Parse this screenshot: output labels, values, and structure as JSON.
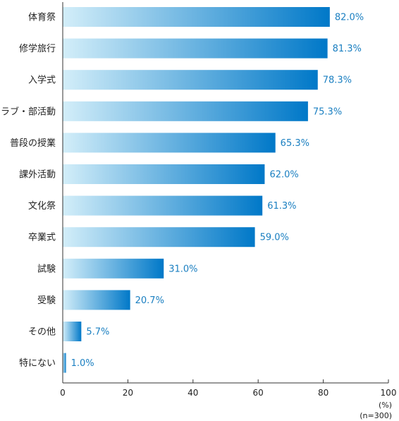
{
  "chart_data": {
    "type": "bar",
    "orientation": "horizontal",
    "categories": [
      "体育祭",
      "修学旅行",
      "入学式",
      "クラブ・部活動",
      "普段の授業",
      "課外活動",
      "文化祭",
      "卒業式",
      "試験",
      "受験",
      "その他",
      "特にない"
    ],
    "values": [
      82.0,
      81.3,
      78.3,
      75.3,
      65.3,
      62.0,
      61.3,
      59.0,
      31.0,
      20.7,
      5.7,
      1.0
    ],
    "value_labels": [
      "82.0%",
      "81.3%",
      "78.3%",
      "75.3%",
      "65.3%",
      "62.0%",
      "61.3%",
      "59.0%",
      "31.0%",
      "20.7%",
      "5.7%",
      "1.0%"
    ],
    "xlim": [
      0,
      100
    ],
    "xticks": [
      "0",
      "20",
      "40",
      "60",
      "80",
      "100"
    ],
    "unit_label": "(%)",
    "sample_label": "(n=300)",
    "grid": false,
    "legend": "none",
    "colors": {
      "bar_start": "#d3eef9",
      "bar_end": "#0078c8",
      "value_text": "#1a7fc1",
      "axis": "#333333"
    }
  }
}
